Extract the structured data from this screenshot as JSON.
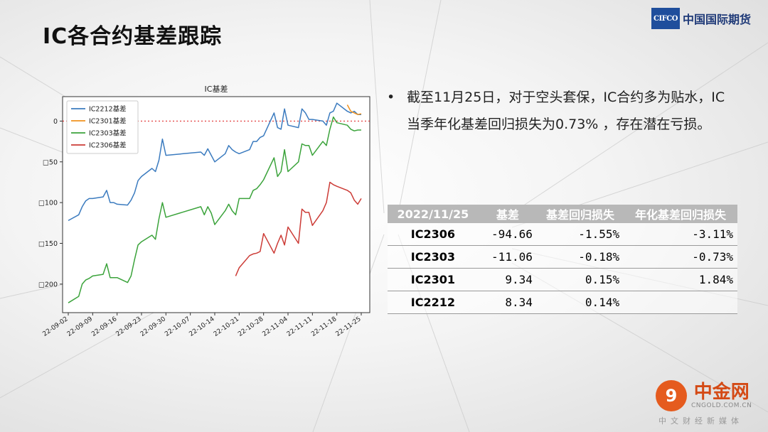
{
  "header": {
    "title": "IC各合约基差跟踪"
  },
  "logo": {
    "box_text": "CIFCO",
    "name": "中国国际期货"
  },
  "bullet": {
    "text": "截至11月25日，对于空头套保，IC合约多为贴水，IC当季年化基差回归损失为0.73% ，存在潜在亏损。"
  },
  "table": {
    "headers": [
      "2022/11/25",
      "基差",
      "基差回归损失",
      "年化基差回归损失"
    ],
    "rows": [
      {
        "name": "IC2306",
        "basis": "-94.66",
        "loss": "-1.55%",
        "annual": "-3.11%"
      },
      {
        "name": "IC2303",
        "basis": "-11.06",
        "loss": "-0.18%",
        "annual": "-0.73%"
      },
      {
        "name": "IC2301",
        "basis": "9.34",
        "loss": "0.15%",
        "annual": "1.84%"
      },
      {
        "name": "IC2212",
        "basis": "8.34",
        "loss": "0.14%",
        "annual": ""
      }
    ]
  },
  "watermark": {
    "logo_char": "9",
    "cn": "中金网",
    "en": "CNGOLD.COM.CN",
    "sub": "中文财经新媒体"
  },
  "chart_data": {
    "type": "line",
    "title": "IC基差",
    "xlabel": "",
    "ylabel": "",
    "x_start": "2022-09-02",
    "x_end": "2022-11-25",
    "xticks": [
      "22-09-02",
      "22-09-09",
      "22-09-16",
      "22-09-23",
      "22-09-30",
      "22-10-07",
      "22-10-14",
      "22-10-21",
      "22-10-28",
      "22-11-04",
      "22-11-11",
      "22-11-18",
      "22-11-25"
    ],
    "yticks": [
      0,
      -50,
      -100,
      -150,
      -200
    ],
    "ytick_labels": [
      "0",
      "□50",
      "□100",
      "□150",
      "□200"
    ],
    "ylim": [
      -235,
      30
    ],
    "zero_line": true,
    "legend": "top-left",
    "series": [
      {
        "name": "IC2212基差",
        "color": "#3b7bbf",
        "x": [
          "2022-09-02",
          "2022-09-05",
          "2022-09-06",
          "2022-09-07",
          "2022-09-08",
          "2022-09-09",
          "2022-09-12",
          "2022-09-13",
          "2022-09-14",
          "2022-09-15",
          "2022-09-16",
          "2022-09-19",
          "2022-09-20",
          "2022-09-21",
          "2022-09-22",
          "2022-09-23",
          "2022-09-26",
          "2022-09-27",
          "2022-09-28",
          "2022-09-29",
          "2022-09-30",
          "2022-10-10",
          "2022-10-11",
          "2022-10-12",
          "2022-10-13",
          "2022-10-14",
          "2022-10-17",
          "2022-10-18",
          "2022-10-19",
          "2022-10-20",
          "2022-10-21",
          "2022-10-24",
          "2022-10-25",
          "2022-10-26",
          "2022-10-27",
          "2022-10-28",
          "2022-10-31",
          "2022-11-01",
          "2022-11-02",
          "2022-11-03",
          "2022-11-04",
          "2022-11-07",
          "2022-11-08",
          "2022-11-09",
          "2022-11-10",
          "2022-11-11",
          "2022-11-14",
          "2022-11-15",
          "2022-11-16",
          "2022-11-17",
          "2022-11-18",
          "2022-11-21",
          "2022-11-22",
          "2022-11-23",
          "2022-11-24",
          "2022-11-25"
        ],
        "values": [
          -122,
          -115,
          -105,
          -98,
          -95,
          -95,
          -93,
          -85,
          -100,
          -100,
          -102,
          -103,
          -97,
          -88,
          -73,
          -68,
          -58,
          -62,
          -48,
          -22,
          -42,
          -38,
          -42,
          -34,
          -42,
          -50,
          -40,
          -30,
          -35,
          -38,
          -40,
          -35,
          -25,
          -25,
          -20,
          -18,
          10,
          -8,
          -10,
          15,
          -5,
          -8,
          15,
          10,
          2,
          2,
          0,
          -5,
          10,
          12,
          22,
          12,
          10,
          12,
          8,
          8
        ]
      },
      {
        "name": "IC2301基差",
        "color": "#f0931f",
        "x": [
          "2022-11-21",
          "2022-11-22",
          "2022-11-23",
          "2022-11-24",
          "2022-11-25"
        ],
        "values": [
          20,
          12,
          10,
          8,
          9
        ]
      },
      {
        "name": "IC2303基差",
        "color": "#3ba33b",
        "x": [
          "2022-09-02",
          "2022-09-05",
          "2022-09-06",
          "2022-09-07",
          "2022-09-08",
          "2022-09-09",
          "2022-09-12",
          "2022-09-13",
          "2022-09-14",
          "2022-09-15",
          "2022-09-16",
          "2022-09-19",
          "2022-09-20",
          "2022-09-21",
          "2022-09-22",
          "2022-09-23",
          "2022-09-26",
          "2022-09-27",
          "2022-09-28",
          "2022-09-29",
          "2022-09-30",
          "2022-10-10",
          "2022-10-11",
          "2022-10-12",
          "2022-10-13",
          "2022-10-14",
          "2022-10-17",
          "2022-10-18",
          "2022-10-19",
          "2022-10-20",
          "2022-10-21",
          "2022-10-24",
          "2022-10-25",
          "2022-10-26",
          "2022-10-27",
          "2022-10-28",
          "2022-10-31",
          "2022-11-01",
          "2022-11-02",
          "2022-11-03",
          "2022-11-04",
          "2022-11-07",
          "2022-11-08",
          "2022-11-09",
          "2022-11-10",
          "2022-11-11",
          "2022-11-14",
          "2022-11-15",
          "2022-11-16",
          "2022-11-17",
          "2022-11-18",
          "2022-11-21",
          "2022-11-22",
          "2022-11-23",
          "2022-11-24",
          "2022-11-25"
        ],
        "values": [
          -223,
          -215,
          -200,
          -195,
          -193,
          -190,
          -188,
          -175,
          -192,
          -192,
          -192,
          -198,
          -190,
          -170,
          -152,
          -148,
          -140,
          -145,
          -120,
          -100,
          -118,
          -105,
          -115,
          -105,
          -113,
          -127,
          -110,
          -102,
          -110,
          -115,
          -95,
          -95,
          -85,
          -83,
          -78,
          -72,
          -45,
          -68,
          -62,
          -35,
          -62,
          -50,
          -28,
          -30,
          -30,
          -42,
          -25,
          -30,
          -10,
          5,
          -2,
          -5,
          -10,
          -12,
          -11,
          -11
        ]
      },
      {
        "name": "IC2306基差",
        "color": "#cc3b36",
        "x": [
          "2022-10-20",
          "2022-10-21",
          "2022-10-24",
          "2022-10-25",
          "2022-10-26",
          "2022-10-27",
          "2022-10-28",
          "2022-10-31",
          "2022-11-01",
          "2022-11-02",
          "2022-11-03",
          "2022-11-04",
          "2022-11-07",
          "2022-11-08",
          "2022-11-09",
          "2022-11-10",
          "2022-11-11",
          "2022-11-14",
          "2022-11-15",
          "2022-11-16",
          "2022-11-17",
          "2022-11-18",
          "2022-11-21",
          "2022-11-22",
          "2022-11-23",
          "2022-11-24",
          "2022-11-25"
        ],
        "values": [
          -190,
          -180,
          -165,
          -163,
          -162,
          -160,
          -138,
          -162,
          -150,
          -140,
          -152,
          -130,
          -150,
          -108,
          -112,
          -112,
          -128,
          -110,
          -100,
          -75,
          -78,
          -80,
          -85,
          -88,
          -97,
          -102,
          -95
        ]
      }
    ]
  }
}
